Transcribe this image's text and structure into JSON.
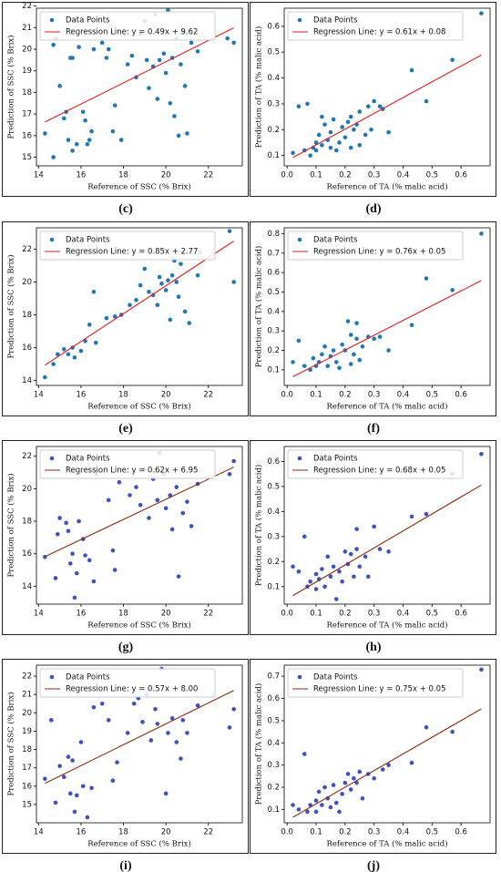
{
  "chart_data": [
    {
      "type": "scatter",
      "caption": "(c)",
      "x_label": "Reference of SSC (% Brix)",
      "y_label": "Prediction of SSC (% Brix)",
      "legend": "upper left",
      "grid": false,
      "xlim": [
        13.9,
        23.6
      ],
      "ylim": [
        14.6,
        21.9
      ],
      "xticks": [
        14,
        16,
        18,
        20,
        22
      ],
      "yticks": [
        15,
        16,
        17,
        18,
        19,
        20,
        21,
        22
      ],
      "series": [
        {
          "name": "Data Points",
          "type": "scatter",
          "color": "#1f77b4",
          "x": [
            14.3,
            14.7,
            14.8,
            14.7,
            15,
            15.2,
            15.3,
            15.4,
            15.5,
            15.6,
            15.6,
            15.8,
            15.9,
            16.1,
            16.2,
            16.3,
            16.4,
            16.5,
            16.6,
            17,
            17.2,
            17.3,
            17.5,
            17.6,
            17.9,
            18.2,
            18.4,
            18.6,
            18.8,
            19,
            19.1,
            19.2,
            19.4,
            19.5,
            19.6,
            19.7,
            19.9,
            20,
            20.1,
            20.2,
            20.3,
            20.4,
            20.5,
            20.6,
            20.7,
            20.8,
            20.9,
            21,
            21.2,
            21.5,
            23.2,
            22.9
          ],
          "values": [
            16.1,
            20.2,
            20.5,
            15,
            18.3,
            16.8,
            17.1,
            15.8,
            19.6,
            19.6,
            15.3,
            15.6,
            20.1,
            17.1,
            16.7,
            15.6,
            15.8,
            16.2,
            20,
            20.3,
            19.6,
            20,
            16.2,
            17.4,
            15.8,
            19.3,
            19.7,
            18.7,
            20.7,
            21.3,
            19.5,
            18.2,
            19.2,
            21.6,
            17.7,
            19.5,
            19.8,
            18.9,
            21.8,
            17.5,
            19.6,
            16.9,
            20.5,
            16,
            19.3,
            20.8,
            18.3,
            16.1,
            20.3,
            19.9,
            20.3,
            20.5
          ]
        },
        {
          "name": "Regression Line: y = 0.49x + 9.62",
          "type": "line",
          "color": "#e8191b",
          "x": [
            14.3,
            23.2
          ],
          "values": [
            16.63,
            20.99
          ]
        }
      ]
    },
    {
      "type": "scatter",
      "caption": "(d)",
      "x_label": "Reference of TA (% malic acid)",
      "y_label": "Prediction of TA (% malic acid)",
      "legend": "upper left",
      "grid": false,
      "xlim": [
        -0.01,
        0.7
      ],
      "ylim": [
        0.06,
        0.67
      ],
      "xticks": [
        {
          "value": 0,
          "label": "0.0"
        },
        0.1,
        0.2,
        0.3,
        0.4,
        0.5,
        0.6
      ],
      "yticks": [
        0.1,
        0.2,
        0.3,
        0.4,
        0.5,
        0.6
      ],
      "series": [
        {
          "name": "Data Points",
          "type": "scatter",
          "color": "#1f77b4",
          "x": [
            0.02,
            0.04,
            0.06,
            0.07,
            0.08,
            0.09,
            0.1,
            0.1,
            0.11,
            0.12,
            0.12,
            0.13,
            0.14,
            0.15,
            0.15,
            0.16,
            0.17,
            0.18,
            0.19,
            0.2,
            0.21,
            0.22,
            0.22,
            0.23,
            0.24,
            0.25,
            0.25,
            0.27,
            0.28,
            0.29,
            0.3,
            0.32,
            0.33,
            0.35,
            0.43,
            0.48,
            0.57,
            0.67
          ],
          "values": [
            0.11,
            0.29,
            0.12,
            0.3,
            0.1,
            0.13,
            0.15,
            0.12,
            0.18,
            0.25,
            0.14,
            0.22,
            0.16,
            0.13,
            0.19,
            0.24,
            0.12,
            0.15,
            0.21,
            0.17,
            0.23,
            0.25,
            0.13,
            0.2,
            0.22,
            0.14,
            0.27,
            0.18,
            0.29,
            0.2,
            0.31,
            0.29,
            0.28,
            0.19,
            0.43,
            0.31,
            0.47,
            0.65
          ]
        },
        {
          "name": "Regression Line: y = 0.61x + 0.08",
          "type": "line",
          "color": "#e8191b",
          "x": [
            0.02,
            0.67
          ],
          "values": [
            0.092,
            0.489
          ]
        }
      ]
    },
    {
      "type": "scatter",
      "caption": "(e)",
      "x_label": "Reference of SSC (% Brix)",
      "y_label": "Prediction of SSC (% Brix)",
      "legend": "upper left",
      "grid": false,
      "xlim": [
        13.9,
        23.6
      ],
      "ylim": [
        13.7,
        23.3
      ],
      "xticks": [
        14,
        16,
        18,
        20,
        22
      ],
      "yticks": [
        14,
        16,
        18,
        20,
        22
      ],
      "series": [
        {
          "name": "Data Points",
          "type": "scatter",
          "color": "#1f77b4",
          "x": [
            14.3,
            14.7,
            14.9,
            15.2,
            15.4,
            15.6,
            15.7,
            16,
            16.2,
            16.4,
            16.6,
            16.7,
            17.2,
            17.6,
            17.9,
            18.3,
            18.6,
            18.8,
            19,
            19.2,
            19.4,
            19.6,
            19.7,
            19.8,
            20,
            20.1,
            20.2,
            20.3,
            20.4,
            20.5,
            20.6,
            20.7,
            20.9,
            21.1,
            21.5,
            21.6,
            23.0,
            23.2
          ],
          "values": [
            14.2,
            15.0,
            15.6,
            15.9,
            15.6,
            16.0,
            15.4,
            15.8,
            16.4,
            17.4,
            19.4,
            16.3,
            17.8,
            17.9,
            18.0,
            18.6,
            18.9,
            19.8,
            20.8,
            19.4,
            19.2,
            18.6,
            20.3,
            19.9,
            19.5,
            20.1,
            17.7,
            20.4,
            21.3,
            20.0,
            19.1,
            21.1,
            18.2,
            17.5,
            20.4,
            21.8,
            23.1,
            20.0
          ]
        },
        {
          "name": "Regression Line: y = 0.85x + 2.77",
          "type": "line",
          "color": "#e8191b",
          "x": [
            14.3,
            23.2
          ],
          "values": [
            14.93,
            22.49
          ]
        }
      ]
    },
    {
      "type": "scatter",
      "caption": "(f)",
      "x_label": "Reference of TA (% malic acid)",
      "y_label": "Prediction of TA (% malic acid)",
      "legend": "upper left",
      "grid": false,
      "xlim": [
        -0.01,
        0.7
      ],
      "ylim": [
        0.02,
        0.83
      ],
      "xticks": [
        {
          "value": 0,
          "label": "0.0"
        },
        0.1,
        0.2,
        0.3,
        0.4,
        0.5,
        0.6
      ],
      "yticks": [
        0.1,
        0.2,
        0.3,
        0.4,
        0.5,
        0.6,
        0.7,
        0.8
      ],
      "series": [
        {
          "name": "Data Points",
          "type": "scatter",
          "color": "#1f77b4",
          "x": [
            0.02,
            0.04,
            0.06,
            0.08,
            0.09,
            0.1,
            0.11,
            0.12,
            0.13,
            0.14,
            0.15,
            0.16,
            0.17,
            0.18,
            0.19,
            0.2,
            0.21,
            0.22,
            0.22,
            0.23,
            0.24,
            0.24,
            0.25,
            0.26,
            0.28,
            0.3,
            0.32,
            0.35,
            0.43,
            0.48,
            0.57,
            0.67
          ],
          "values": [
            0.14,
            0.25,
            0.12,
            0.1,
            0.16,
            0.12,
            0.14,
            0.18,
            0.22,
            0.12,
            0.17,
            0.2,
            0.14,
            0.11,
            0.23,
            0.2,
            0.35,
            0.28,
            0.13,
            0.18,
            0.26,
            0.34,
            0.15,
            0.22,
            0.27,
            0.26,
            0.27,
            0.2,
            0.33,
            0.57,
            0.51,
            0.8
          ]
        },
        {
          "name": "Regression Line: y = 0.76x + 0.05",
          "type": "line",
          "color": "#e8191b",
          "x": [
            0.02,
            0.67
          ],
          "values": [
            0.065,
            0.559
          ]
        }
      ]
    },
    {
      "type": "scatter",
      "caption": "(g)",
      "x_label": "Reference of SSC (% Brix)",
      "y_label": "Prediction of SSC (% Brix)",
      "legend": "upper left",
      "grid": false,
      "xlim": [
        13.9,
        23.6
      ],
      "ylim": [
        12.9,
        22.6
      ],
      "xticks": [
        14,
        16,
        18,
        20,
        22
      ],
      "yticks": [
        14,
        16,
        18,
        20,
        22
      ],
      "series": [
        {
          "name": "Data Points",
          "type": "scatter",
          "color": "#3f51c1",
          "x": [
            14.3,
            14.8,
            14.9,
            15,
            15.3,
            15.4,
            15.5,
            15.6,
            15.7,
            15.8,
            15.9,
            16.1,
            16.2,
            16.4,
            16.6,
            16.7,
            17.3,
            17.5,
            17.6,
            17.8,
            18.3,
            18.6,
            18.8,
            19,
            19.2,
            19.4,
            19.6,
            19.7,
            19.9,
            20,
            20.2,
            20.3,
            20.5,
            20.6,
            20.8,
            21,
            21.2,
            21.5,
            23.0,
            23.2
          ],
          "values": [
            15.8,
            14.5,
            17.2,
            18.2,
            17.9,
            17.4,
            15.4,
            16.0,
            13.3,
            14.8,
            18.0,
            16.9,
            15.9,
            15.6,
            14.3,
            20.9,
            19.3,
            16.2,
            15.0,
            20.4,
            19.6,
            20.1,
            19.0,
            21.2,
            18.2,
            20.6,
            19.3,
            22.2,
            20.9,
            18.8,
            19.6,
            17.5,
            20.1,
            14.6,
            18.5,
            19.2,
            17.7,
            20.3,
            20.9,
            21.7
          ]
        },
        {
          "name": "Regression Line: y = 0.62x + 6.95",
          "type": "line",
          "color": "#8c2a0e",
          "x": [
            14.3,
            23.2
          ],
          "values": [
            15.82,
            21.33
          ]
        }
      ]
    },
    {
      "type": "scatter",
      "caption": "(h)",
      "x_label": "Reference of TA (% malic acid)",
      "y_label": "Prediction of TA (% malic acid)",
      "legend": "upper left",
      "grid": false,
      "xlim": [
        -0.01,
        0.7
      ],
      "ylim": [
        0.03,
        0.66
      ],
      "xticks": [
        {
          "value": 0,
          "label": "0.0"
        },
        0.1,
        0.2,
        0.3,
        0.4,
        0.5,
        0.6
      ],
      "yticks": [
        0.1,
        0.2,
        0.3,
        0.4,
        0.5,
        0.6
      ],
      "series": [
        {
          "name": "Data Points",
          "type": "scatter",
          "color": "#3f51c1",
          "x": [
            0.02,
            0.04,
            0.06,
            0.07,
            0.08,
            0.1,
            0.1,
            0.11,
            0.12,
            0.13,
            0.14,
            0.15,
            0.16,
            0.17,
            0.18,
            0.19,
            0.2,
            0.21,
            0.22,
            0.23,
            0.24,
            0.24,
            0.25,
            0.27,
            0.28,
            0.3,
            0.32,
            0.35,
            0.43,
            0.48,
            0.57,
            0.67
          ],
          "values": [
            0.18,
            0.16,
            0.3,
            0.1,
            0.12,
            0.15,
            0.09,
            0.13,
            0.17,
            0.1,
            0.22,
            0.14,
            0.18,
            0.05,
            0.16,
            0.12,
            0.24,
            0.19,
            0.23,
            0.14,
            0.25,
            0.33,
            0.18,
            0.22,
            0.14,
            0.34,
            0.25,
            0.24,
            0.38,
            0.39,
            0.55,
            0.63
          ]
        },
        {
          "name": "Regression Line: y = 0.68x + 0.05",
          "type": "line",
          "color": "#8c2a0e",
          "x": [
            0.02,
            0.67
          ],
          "values": [
            0.064,
            0.506
          ]
        }
      ]
    },
    {
      "type": "scatter",
      "caption": "(i)",
      "x_label": "Reference of SSC (% Brix)",
      "y_label": "Prediction of SSC (% Brix)",
      "legend": "upper left",
      "grid": false,
      "xlim": [
        13.9,
        23.6
      ],
      "ylim": [
        14.0,
        22.6
      ],
      "xticks": [
        14,
        16,
        18,
        20,
        22
      ],
      "yticks": [
        15,
        16,
        17,
        18,
        19,
        20,
        21,
        22
      ],
      "series": [
        {
          "name": "Data Points",
          "type": "scatter",
          "color": "#3f51c1",
          "x": [
            14.3,
            14.6,
            14.8,
            15.0,
            15.2,
            15.4,
            15.5,
            15.6,
            15.7,
            15.8,
            16.0,
            16.1,
            16.3,
            16.5,
            16.6,
            17.0,
            17.3,
            17.5,
            17.7,
            18.2,
            18.5,
            18.7,
            18.9,
            19.1,
            19.3,
            19.5,
            19.6,
            19.8,
            20.0,
            20.1,
            20.3,
            20.5,
            20.7,
            20.8,
            21.0,
            21.5,
            23.0,
            23.2
          ],
          "values": [
            16.4,
            19.6,
            15.1,
            17.1,
            16.5,
            17.6,
            15.6,
            17.4,
            14.6,
            15.5,
            18.4,
            16.0,
            14.3,
            15.9,
            20.3,
            20.5,
            19.6,
            16.3,
            17.3,
            18.9,
            20.5,
            20.8,
            19.5,
            21.0,
            18.5,
            20.2,
            19.4,
            22.4,
            15.6,
            18.9,
            19.7,
            18.4,
            17.5,
            19.6,
            18.9,
            20.4,
            19.2,
            20.2
          ]
        },
        {
          "name": "Regression Line: y = 0.57x + 8.00",
          "type": "line",
          "color": "#8c2a0e",
          "x": [
            14.3,
            23.2
          ],
          "values": [
            16.15,
            21.22
          ]
        }
      ]
    },
    {
      "type": "scatter",
      "caption": "(j)",
      "x_label": "Reference of TA (% malic acid)",
      "y_label": "Prediction of TA (% malic acid)",
      "legend": "upper left",
      "grid": false,
      "xlim": [
        -0.01,
        0.7
      ],
      "ylim": [
        0.04,
        0.75
      ],
      "xticks": [
        {
          "value": 0,
          "label": "0.0"
        },
        0.1,
        0.2,
        0.3,
        0.4,
        0.5,
        0.6
      ],
      "yticks": [
        0.1,
        0.2,
        0.3,
        0.4,
        0.5,
        0.6,
        0.7
      ],
      "series": [
        {
          "name": "Data Points",
          "type": "scatter",
          "color": "#3f51c1",
          "x": [
            0.02,
            0.04,
            0.06,
            0.07,
            0.08,
            0.1,
            0.1,
            0.11,
            0.12,
            0.13,
            0.14,
            0.15,
            0.16,
            0.17,
            0.18,
            0.19,
            0.2,
            0.21,
            0.22,
            0.23,
            0.24,
            0.25,
            0.26,
            0.28,
            0.3,
            0.33,
            0.35,
            0.43,
            0.48,
            0.57,
            0.67
          ],
          "values": [
            0.12,
            0.1,
            0.35,
            0.09,
            0.12,
            0.14,
            0.09,
            0.18,
            0.12,
            0.2,
            0.15,
            0.11,
            0.21,
            0.13,
            0.09,
            0.17,
            0.22,
            0.26,
            0.19,
            0.24,
            0.22,
            0.27,
            0.15,
            0.26,
            0.24,
            0.28,
            0.3,
            0.31,
            0.47,
            0.45,
            0.73
          ]
        },
        {
          "name": "Regression Line: y = 0.75x + 0.05",
          "type": "line",
          "color": "#8c2a0e",
          "x": [
            0.02,
            0.67
          ],
          "values": [
            0.065,
            0.553
          ]
        }
      ]
    }
  ]
}
